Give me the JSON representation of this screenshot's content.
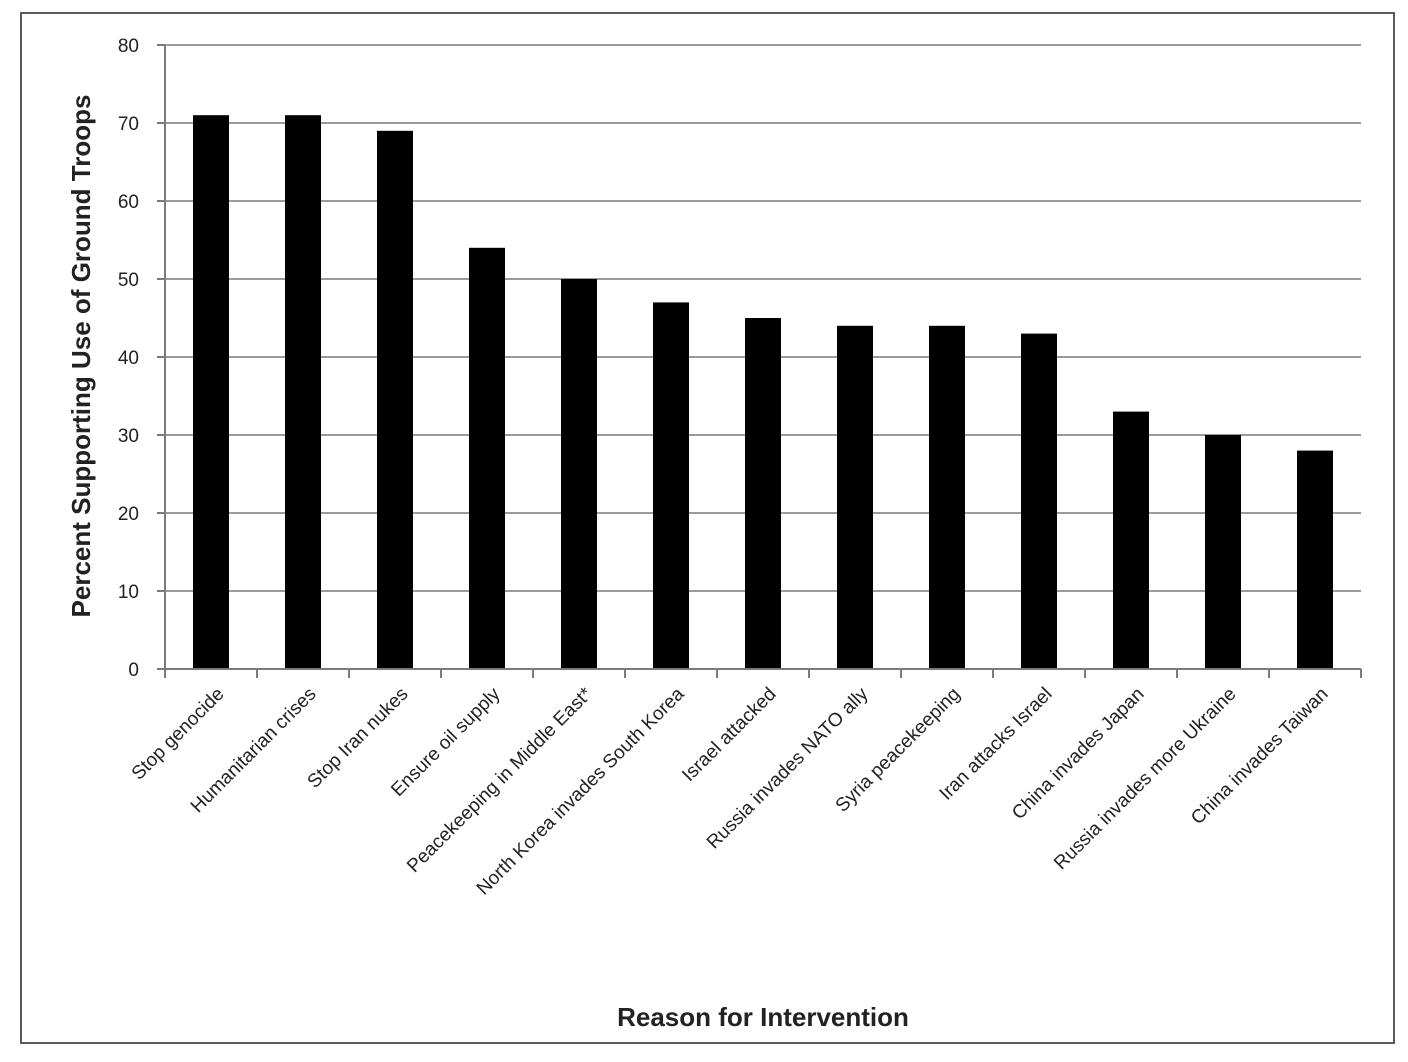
{
  "chart_data": {
    "type": "bar",
    "title": "",
    "xlabel": "Reason for Intervention",
    "ylabel": "Percent Supporting Use of Ground Troops",
    "ylim": [
      0,
      80
    ],
    "yticks": [
      0,
      10,
      20,
      30,
      40,
      50,
      60,
      70,
      80
    ],
    "grid": true,
    "categories": [
      "Stop genocide",
      "Humanitarian crises",
      "Stop Iran nukes",
      "Ensure oil supply",
      "Peacekeeping in Middle East*",
      "North Korea invades South Korea",
      "Israel attacked",
      "Russia invades NATO ally",
      "Syria peacekeeping",
      "Iran attacks Israel",
      "China invades Japan",
      "Russia invades more Ukraine",
      "China invades Taiwan"
    ],
    "values": [
      71,
      71,
      69,
      54,
      50,
      47,
      45,
      44,
      44,
      43,
      33,
      30,
      28
    ],
    "bar_color": "#000000",
    "grid_color": "#9a9a9a"
  }
}
